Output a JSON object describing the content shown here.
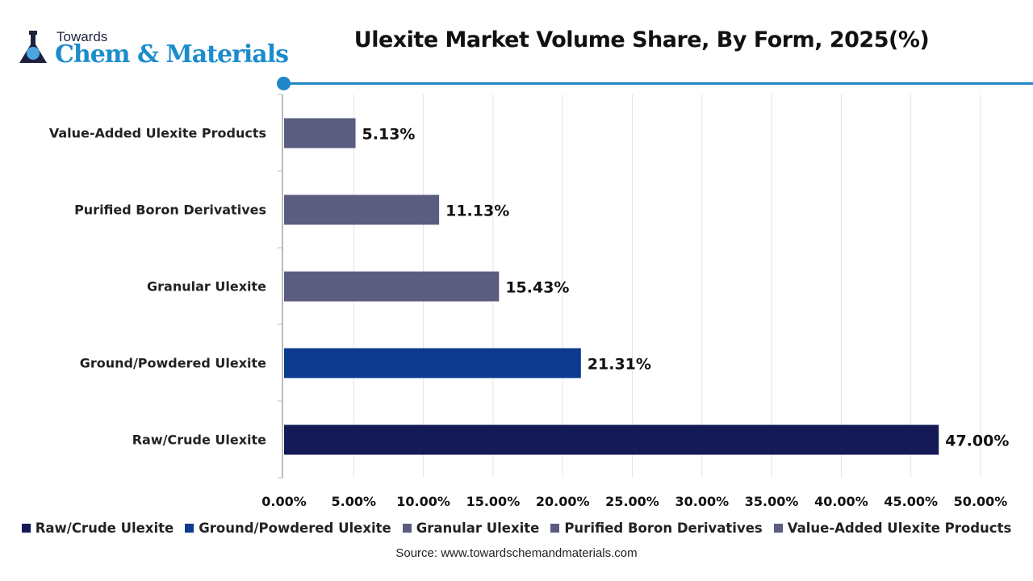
{
  "logo": {
    "line1": "Towards",
    "line2": "Chem & Materials"
  },
  "chart_data": {
    "type": "bar",
    "orientation": "horizontal",
    "title": "Ulexite Market Volume Share, By Form, 2025(%)",
    "categories": [
      "Value-Added Ulexite Products",
      "Purified Boron Derivatives",
      "Granular Ulexite",
      "Ground/Powdered Ulexite",
      "Raw/Crude Ulexite"
    ],
    "values": [
      5.13,
      11.13,
      15.43,
      21.31,
      47.0
    ],
    "data_labels": [
      "5.13%",
      "11.13%",
      "15.43%",
      "21.31%",
      "47.00%"
    ],
    "colors": [
      "#5a5c80",
      "#5a5c80",
      "#5a5c80",
      "#0b3a8f",
      "#131a55"
    ],
    "xlim": [
      0,
      50
    ],
    "x_ticks": [
      "0.00%",
      "5.00%",
      "10.00%",
      "15.00%",
      "20.00%",
      "25.00%",
      "30.00%",
      "35.00%",
      "40.00%",
      "45.00%",
      "50.00%"
    ],
    "grid": "vertical",
    "legend_position": "bottom",
    "legend": [
      {
        "label": "Raw/Crude Ulexite",
        "color": "#131a55"
      },
      {
        "label": "Ground/Powdered Ulexite",
        "color": "#0b3a8f"
      },
      {
        "label": "Granular Ulexite",
        "color": "#5a5c80"
      },
      {
        "label": "Purified Boron Derivatives",
        "color": "#5a5c80"
      },
      {
        "label": "Value-Added Ulexite Products",
        "color": "#5a5c80"
      }
    ]
  },
  "source": "Source: www.towardschemandmaterials.com"
}
